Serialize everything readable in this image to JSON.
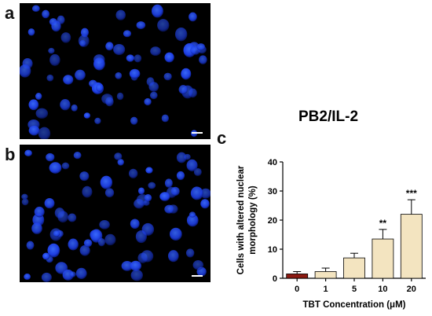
{
  "panels": {
    "a_label": "a",
    "b_label": "b",
    "c_label": "c"
  },
  "chart_data": {
    "type": "bar",
    "title": "PB2/IL-2",
    "xlabel": "TBT Concentration (μM)",
    "ylabel": "Cells with altered nuclear morphology (%)",
    "ylabel_lines": [
      "Cells with altered nuclear",
      "morphology (%)"
    ],
    "categories": [
      "0",
      "1",
      "5",
      "10",
      "20"
    ],
    "values": [
      1.5,
      2.3,
      7.0,
      13.5,
      22.0
    ],
    "errors": [
      0.8,
      1.2,
      1.6,
      3.3,
      5.0
    ],
    "significance": [
      "",
      "",
      "",
      "**",
      "***"
    ],
    "ylim": [
      0,
      40
    ],
    "yticks": [
      0,
      10,
      20,
      30,
      40
    ],
    "colors": {
      "control": "#8B1A12",
      "treated": "#F3E4C0",
      "stroke": "#000000"
    }
  },
  "micrograph_colors": {
    "background": "#000000",
    "nucleus": "#1E3FE6",
    "nucleus_bright": "#3A6BFF",
    "scale_bar": "#ffffff"
  }
}
